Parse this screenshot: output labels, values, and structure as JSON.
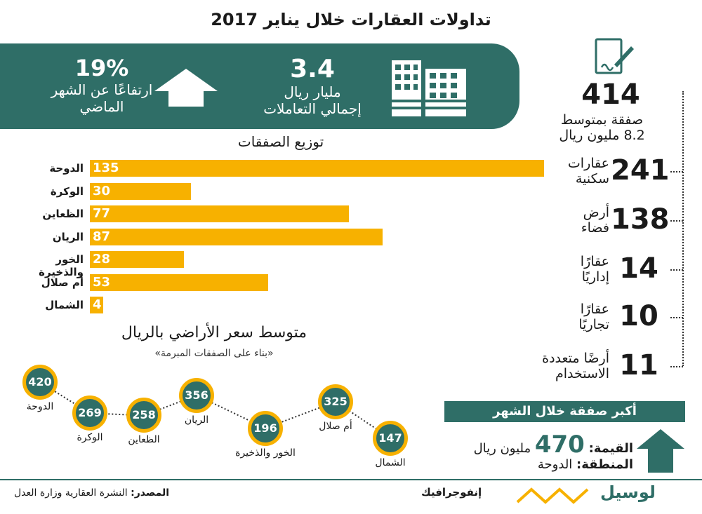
{
  "title": "تداولات العقارات خلال يناير 2017",
  "banner": {
    "value": "3.4",
    "value_unit": "مليار ريال",
    "value_desc": "إجمالي التعاملات",
    "change": "19%",
    "change_desc_1": "ارتفاعًا عن الشهر",
    "change_desc_2": "الماضي"
  },
  "chart_data": [
    {
      "type": "bar",
      "title": "توزيع الصفقات",
      "categories": [
        "الدوحة",
        "الوكرة",
        "الظعاين",
        "الريان",
        "الخور والذخيرة",
        "أم صلال",
        "الشمال"
      ],
      "values": [
        135,
        30,
        77,
        87,
        28,
        53,
        4
      ],
      "xlim": [
        0,
        135
      ]
    },
    {
      "type": "line",
      "title": "متوسط سعر الأراضي بالريال",
      "subtitle": "«بناء على الصفقات المبرمة»",
      "categories": [
        "الدوحة",
        "الوكرة",
        "الظعاين",
        "الريان",
        "الخور والذخيرة",
        "أم صلال",
        "الشمال"
      ],
      "values": [
        420,
        269,
        258,
        356,
        196,
        325,
        147
      ]
    }
  ],
  "stats": {
    "total": "414",
    "total_desc_1": "صفقة بمتوسط",
    "total_desc_2": "8.2 مليون ريال",
    "items": [
      {
        "num": "241",
        "l1": "عقارات",
        "l2": "سكنية"
      },
      {
        "num": "138",
        "l1": "أرض",
        "l2": "فضاء"
      },
      {
        "num": "14",
        "l1": "عقارًا",
        "l2": "إداريًا"
      },
      {
        "num": "10",
        "l1": "عقارًا",
        "l2": "تجاريًا"
      },
      {
        "num": "11",
        "l1": "أرضًا متعددة",
        "l2": "الاستخدام"
      }
    ]
  },
  "biggest": {
    "heading": "أكبر صفقة خلال الشهر",
    "value_label": "القيمة:",
    "value_num": "470",
    "value_unit": "مليون ريال",
    "region_label": "المنطقة:",
    "region_value": "الدوحة"
  },
  "footer": {
    "source_label": "المصدر:",
    "source_text": "النشرة العقارية وزارة العدل",
    "infographic": "إنفوجرافيك",
    "brand": "لوسيل"
  },
  "colors": {
    "teal": "#2f6e67",
    "orange": "#f7b100"
  }
}
